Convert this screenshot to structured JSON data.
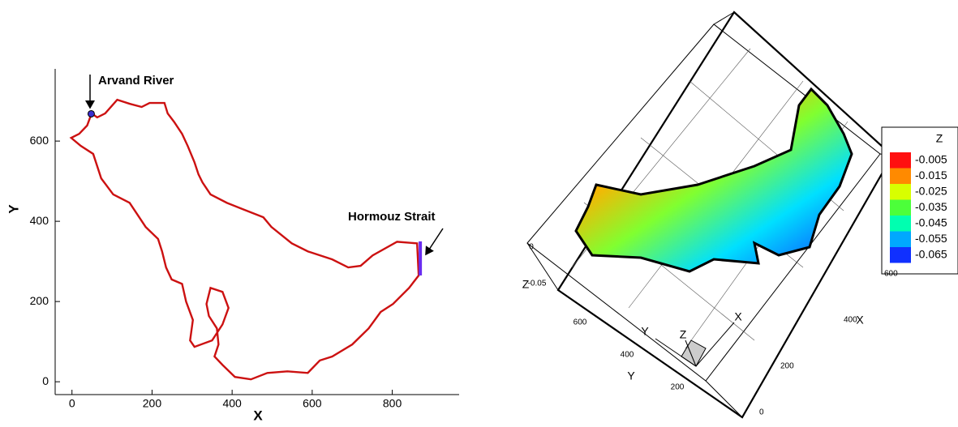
{
  "chart_data": [
    {
      "type": "line",
      "xlabel": "X",
      "ylabel": "Y",
      "xlim": [
        -42,
        967
      ],
      "ylim": [
        -32,
        780
      ],
      "xticks": [
        0,
        200,
        400,
        600,
        800
      ],
      "yticks": [
        0,
        200,
        400,
        600
      ],
      "series": [
        {
          "color": "#cc1111",
          "x": [
            49,
            63,
            83,
            113,
            144,
            174,
            194,
            231,
            239,
            255,
            275,
            289,
            306,
            316,
            326,
            346,
            387,
            427,
            478,
            498,
            549,
            589,
            650,
            690,
            721,
            751,
            812,
            862,
            866,
            842,
            802,
            771,
            741,
            700,
            650,
            619,
            589,
            538,
            488,
            447,
            407,
            376,
            356,
            366,
            362,
            342,
            336,
            346,
            376,
            391,
            376,
            350,
            306,
            295,
            302,
            285,
            275,
            249,
            235,
            225,
            215,
            184,
            164,
            144,
            103,
            73,
            53,
            22,
            -2,
            18,
            38,
            49
          ],
          "y": [
            669,
            659,
            669,
            703,
            693,
            685,
            695,
            695,
            669,
            648,
            618,
            588,
            547,
            517,
            497,
            467,
            446,
            430,
            410,
            386,
            345,
            325,
            305,
            285,
            289,
            315,
            349,
            345,
            265,
            234,
            194,
            174,
            133,
            93,
            63,
            53,
            22,
            26,
            22,
            6,
            12,
            42,
            63,
            93,
            133,
            164,
            194,
            234,
            224,
            184,
            143,
            103,
            87,
            103,
            154,
            200,
            244,
            255,
            285,
            325,
            356,
            386,
            416,
            446,
            467,
            507,
            568,
            588,
            608,
            618,
            639,
            669
          ]
        },
        {
          "color": "#6a2cf0",
          "x": [
            870,
            870
          ],
          "y": [
            265,
            350
          ]
        },
        {
          "color": "#3b2fd0",
          "marker": true,
          "x": [
            48
          ],
          "y": [
            668
          ]
        }
      ],
      "annotations": [
        "Arvand River",
        "Hormouz Strait"
      ]
    },
    {
      "type": "surface3d",
      "axis_labels": {
        "x": "X",
        "y": "Y",
        "z": "Z"
      },
      "xticks": [
        0,
        200,
        400,
        600
      ],
      "yticks": [
        200,
        400,
        600
      ],
      "zticks": [
        0,
        -0.05
      ],
      "legend_title": "Z",
      "levels": [
        -0.005,
        -0.015,
        -0.025,
        -0.035,
        -0.045,
        -0.055,
        -0.065
      ],
      "colors": [
        "#ff1010",
        "#ff8a00",
        "#d8ff00",
        "#4cff3a",
        "#00ffb0",
        "#00a8ff",
        "#1030ff"
      ]
    }
  ]
}
